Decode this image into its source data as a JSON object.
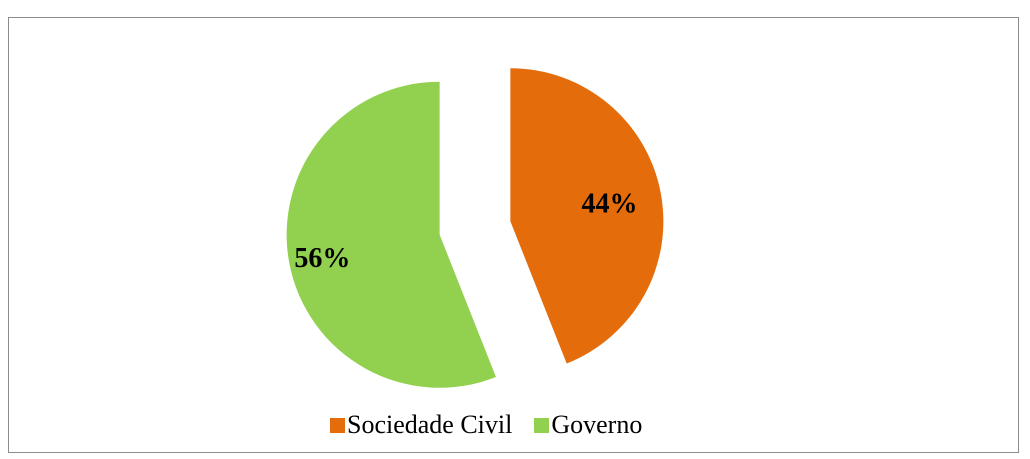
{
  "chart_data": {
    "type": "pie",
    "categories": [
      "Sociedade Civil",
      "Governo"
    ],
    "values": [
      44,
      56
    ],
    "labels": [
      "44%",
      "56%"
    ],
    "colors": [
      "#e46c0a",
      "#92d050"
    ],
    "exploded": true,
    "legend_position": "bottom",
    "title": ""
  }
}
